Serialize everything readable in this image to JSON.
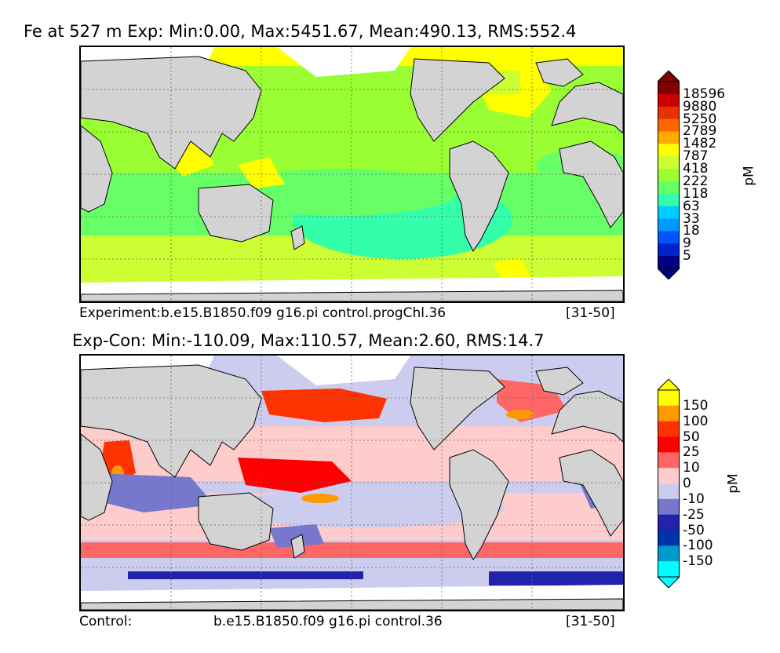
{
  "top": {
    "title": "Fe at 527 m Exp: Min:0.00, Max:5451.67, Mean:490.13, RMS:552.4",
    "caption_left": "Experiment:b.e15.B1850.f09 g16.pi control.progChl.36",
    "caption_right": "[31-50]",
    "unit": "pM",
    "colorbar": {
      "labels": [
        "18596",
        "9880",
        "5250",
        "2789",
        "1482",
        "787",
        "418",
        "222",
        "118",
        "63",
        "33",
        "18",
        "9",
        "5"
      ],
      "colors_top_to_bottom": [
        "#7f0000",
        "#cc0000",
        "#e63300",
        "#ff6600",
        "#ffaa00",
        "#ffff00",
        "#ccff33",
        "#99ff33",
        "#66ff66",
        "#33ffaa",
        "#00ccff",
        "#0099ff",
        "#0055ff",
        "#0022cc",
        "#000080"
      ],
      "extend": "both"
    }
  },
  "bottom": {
    "title": "Exp-Con: Min:-110.09, Max:110.57, Mean:2.60, RMS:14.7",
    "caption_left": "Control:",
    "caption_mid": "b.e15.B1850.f09 g16.pi control.36",
    "caption_right": "[31-50]",
    "unit": "pM",
    "colorbar": {
      "labels": [
        "150",
        "100",
        "50",
        "25",
        "10",
        "0",
        "-10",
        "-25",
        "-50",
        "-100",
        "-150"
      ],
      "colors_top_to_bottom": [
        "#ffff00",
        "#ff9900",
        "#ff3300",
        "#ff0000",
        "#ff6666",
        "#ffcccc",
        "#ccccee",
        "#7777cc",
        "#2222aa",
        "#0033aa",
        "#0099cc",
        "#00ffff"
      ],
      "extend": "both"
    }
  },
  "colors": {
    "land": "#d3d3d3",
    "missing": "#ffffff",
    "frame": "#000000"
  }
}
